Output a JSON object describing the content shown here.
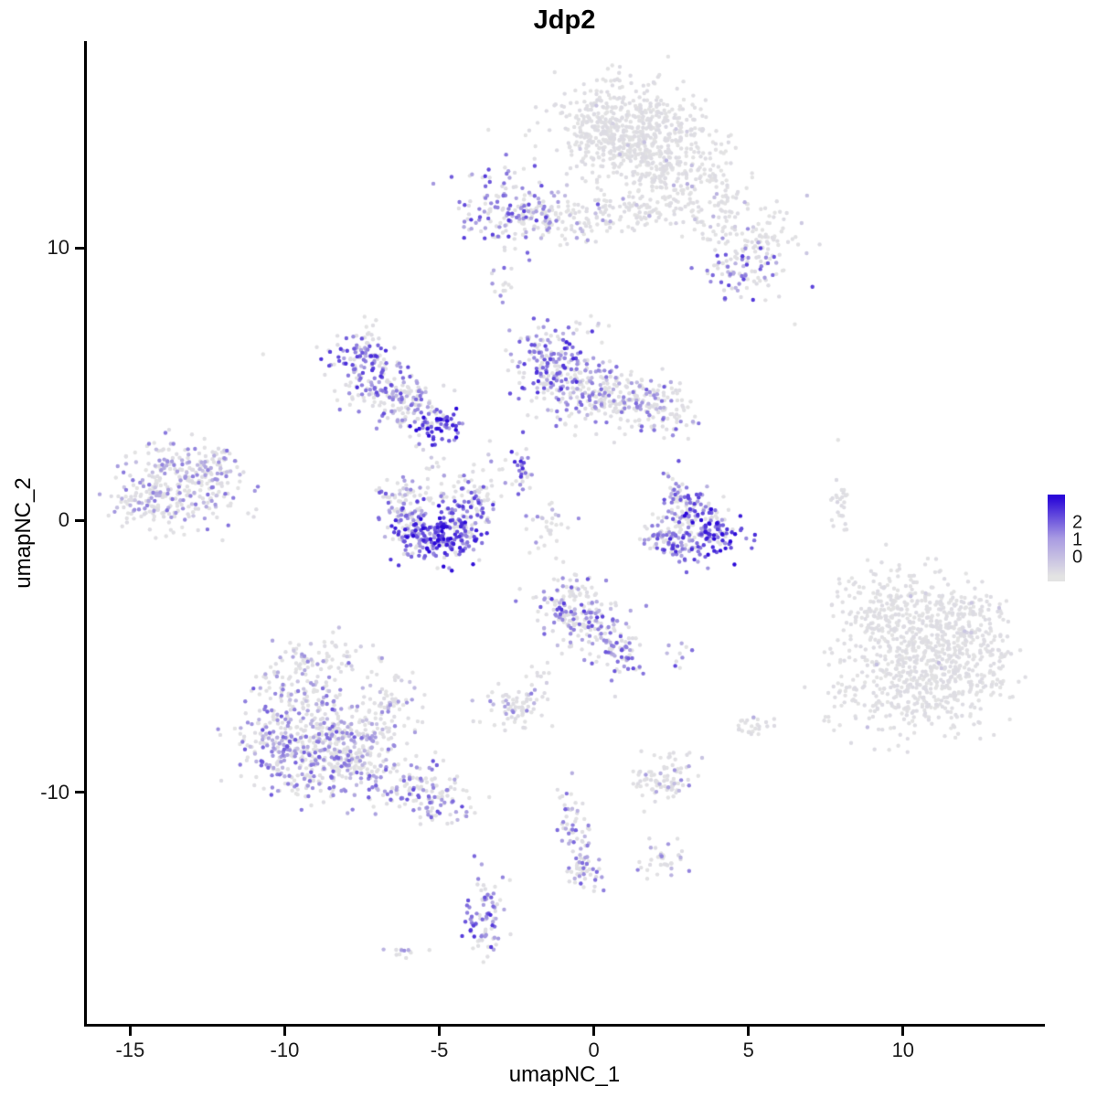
{
  "chart_data": {
    "type": "scatter",
    "title": "Jdp2",
    "xlabel": "umapNC_1",
    "ylabel": "umapNC_2",
    "xlim": [
      -16.4,
      14.5
    ],
    "ylim": [
      -18.5,
      17.6
    ],
    "xticks": [
      -15,
      -10,
      -5,
      0,
      5,
      10
    ],
    "yticks": [
      -10,
      0,
      10
    ],
    "grid": false,
    "background": "#ffffff",
    "point_radius": 2.2,
    "expression_max": 2.5,
    "legend": {
      "position": "right",
      "ticks": [
        "2",
        "1",
        "0"
      ],
      "low_color": "#E3E3E3",
      "mid_color": "#A89AE2",
      "high_color": "#2B09D8"
    },
    "clusters_schema": [
      "center_x",
      "center_y",
      "sd_x",
      "sd_y",
      "n_points",
      "fraction_zero",
      "expression_high"
    ],
    "clusters": [
      [
        1.0,
        14.6,
        1.05,
        0.85,
        380,
        0.98,
        0.4
      ],
      [
        2.2,
        13.4,
        1.1,
        0.9,
        300,
        0.98,
        0.4
      ],
      [
        0.2,
        13.9,
        0.5,
        0.6,
        80,
        0.97,
        0.4
      ],
      [
        3.8,
        11.6,
        0.9,
        0.7,
        120,
        0.95,
        0.5
      ],
      [
        5.3,
        10.3,
        0.7,
        0.5,
        70,
        0.9,
        0.7
      ],
      [
        4.8,
        9.2,
        0.6,
        0.5,
        80,
        0.5,
        1.3
      ],
      [
        -2.9,
        11.3,
        0.75,
        0.75,
        130,
        0.42,
        1.3
      ],
      [
        -1.6,
        11.1,
        0.8,
        0.5,
        80,
        0.75,
        0.9
      ],
      [
        0.0,
        11.2,
        1.0,
        0.45,
        70,
        0.92,
        0.6
      ],
      [
        1.5,
        11.4,
        0.6,
        0.35,
        40,
        0.95,
        0.5
      ],
      [
        -3.0,
        8.7,
        0.25,
        0.35,
        10,
        0.6,
        1.0
      ],
      [
        -7.5,
        5.9,
        0.55,
        0.55,
        90,
        0.3,
        1.4
      ],
      [
        -6.9,
        4.9,
        0.6,
        0.5,
        90,
        0.42,
        1.2
      ],
      [
        -6.0,
        4.3,
        0.55,
        0.4,
        70,
        0.55,
        1.0
      ],
      [
        -5.6,
        3.9,
        0.5,
        0.5,
        30,
        0.7,
        0.9
      ],
      [
        -5.0,
        3.5,
        0.4,
        0.35,
        60,
        0.2,
        1.8
      ],
      [
        -7.2,
        6.8,
        0.4,
        0.3,
        15,
        0.9,
        0.5
      ],
      [
        -1.5,
        5.9,
        0.55,
        0.75,
        130,
        0.35,
        1.4
      ],
      [
        -0.6,
        4.9,
        0.8,
        0.65,
        140,
        0.6,
        1.0
      ],
      [
        0.7,
        4.4,
        0.8,
        0.55,
        110,
        0.72,
        0.9
      ],
      [
        1.9,
        4.1,
        0.6,
        0.5,
        80,
        0.6,
        1.1
      ],
      [
        2.7,
        3.9,
        0.4,
        0.4,
        25,
        0.7,
        0.9
      ],
      [
        -0.3,
        6.9,
        0.5,
        0.3,
        12,
        0.8,
        0.7
      ],
      [
        -13.6,
        1.3,
        0.95,
        0.75,
        260,
        0.62,
        0.9
      ],
      [
        -12.2,
        2.0,
        0.5,
        0.4,
        50,
        0.7,
        0.8
      ],
      [
        -14.4,
        0.6,
        0.5,
        0.5,
        60,
        0.65,
        0.9
      ],
      [
        -6.3,
        0.7,
        0.35,
        0.5,
        55,
        0.5,
        1.1
      ],
      [
        -5.9,
        -0.3,
        0.4,
        0.45,
        80,
        0.3,
        1.5
      ],
      [
        -5.2,
        -0.8,
        0.55,
        0.38,
        110,
        0.15,
        1.8
      ],
      [
        -4.4,
        -0.4,
        0.45,
        0.42,
        90,
        0.25,
        1.6
      ],
      [
        -4.0,
        0.6,
        0.38,
        0.5,
        65,
        0.42,
        1.3
      ],
      [
        -5.1,
        1.3,
        0.7,
        0.5,
        45,
        0.88,
        0.6
      ],
      [
        -3.4,
        1.5,
        0.4,
        0.8,
        20,
        0.8,
        0.8
      ],
      [
        -2.35,
        1.8,
        0.18,
        0.6,
        30,
        0.35,
        1.5
      ],
      [
        -1.5,
        -0.3,
        0.35,
        0.5,
        30,
        0.85,
        0.7
      ],
      [
        2.6,
        0.9,
        0.3,
        0.4,
        40,
        0.45,
        1.2
      ],
      [
        3.2,
        0.3,
        0.38,
        0.4,
        60,
        0.35,
        1.4
      ],
      [
        3.8,
        -0.5,
        0.5,
        0.4,
        95,
        0.15,
        1.9
      ],
      [
        2.9,
        -0.9,
        0.5,
        0.35,
        75,
        0.3,
        1.5
      ],
      [
        2.2,
        -0.5,
        0.33,
        0.3,
        40,
        0.5,
        1.1
      ],
      [
        8.0,
        0.5,
        0.14,
        0.55,
        25,
        0.96,
        0.4
      ],
      [
        9.4,
        -3.2,
        0.8,
        0.7,
        160,
        0.985,
        0.35
      ],
      [
        10.9,
        -4.3,
        1.15,
        0.95,
        300,
        0.985,
        0.35
      ],
      [
        10.2,
        -6.1,
        1.3,
        0.95,
        320,
        0.985,
        0.35
      ],
      [
        12.2,
        -5.6,
        0.85,
        0.85,
        150,
        0.985,
        0.35
      ],
      [
        11.8,
        -3.4,
        0.6,
        0.6,
        80,
        0.985,
        0.35
      ],
      [
        -0.9,
        -3.0,
        0.6,
        0.55,
        100,
        0.45,
        1.3
      ],
      [
        -0.1,
        -3.9,
        0.65,
        0.6,
        110,
        0.55,
        1.1
      ],
      [
        0.9,
        -4.9,
        0.45,
        0.5,
        55,
        0.5,
        1.2
      ],
      [
        2.7,
        -4.9,
        0.25,
        0.25,
        10,
        0.5,
        1.2
      ],
      [
        -9.2,
        -6.2,
        0.85,
        0.7,
        130,
        0.7,
        0.9
      ],
      [
        -9.9,
        -8.1,
        0.9,
        0.85,
        240,
        0.5,
        1.1
      ],
      [
        -8.4,
        -8.8,
        0.9,
        0.8,
        240,
        0.55,
        1.0
      ],
      [
        -7.2,
        -7.6,
        0.7,
        0.8,
        120,
        0.75,
        0.8
      ],
      [
        -6.2,
        -9.7,
        0.7,
        0.5,
        90,
        0.55,
        1.1
      ],
      [
        -5.0,
        -10.3,
        0.55,
        0.45,
        70,
        0.5,
        1.2
      ],
      [
        -8.6,
        -5.1,
        0.9,
        0.45,
        40,
        0.85,
        0.6
      ],
      [
        -6.4,
        -6.4,
        0.5,
        0.5,
        30,
        0.8,
        0.7
      ],
      [
        -2.5,
        -6.8,
        0.55,
        0.4,
        70,
        0.68,
        0.9
      ],
      [
        -1.9,
        -5.7,
        0.3,
        0.25,
        10,
        0.85,
        0.6
      ],
      [
        2.3,
        -9.5,
        0.55,
        0.42,
        85,
        0.85,
        0.8
      ],
      [
        5.2,
        -7.5,
        0.35,
        0.28,
        25,
        0.95,
        0.5
      ],
      [
        -0.8,
        -10.8,
        0.25,
        0.5,
        35,
        0.55,
        1.1
      ],
      [
        -0.4,
        -12.2,
        0.25,
        0.5,
        35,
        0.55,
        1.1
      ],
      [
        -0.2,
        -13.0,
        0.3,
        0.3,
        25,
        0.5,
        1.2
      ],
      [
        2.1,
        -12.5,
        0.4,
        0.3,
        35,
        0.8,
        0.8
      ],
      [
        -3.5,
        -14.0,
        0.28,
        0.55,
        40,
        0.5,
        1.2
      ],
      [
        -3.6,
        -15.2,
        0.3,
        0.5,
        45,
        0.35,
        1.4
      ],
      [
        -6.1,
        -15.9,
        0.3,
        0.15,
        12,
        0.7,
        0.9
      ]
    ],
    "singles_schema": [
      "x",
      "y",
      "expression"
    ],
    "singles": [
      [
        -10.7,
        6.1,
        0
      ],
      [
        6.5,
        7.2,
        0
      ],
      [
        -2.95,
        8.0,
        0.9
      ],
      [
        7.9,
        2.95,
        0
      ],
      [
        -3.2,
        8.4,
        0
      ]
    ]
  }
}
